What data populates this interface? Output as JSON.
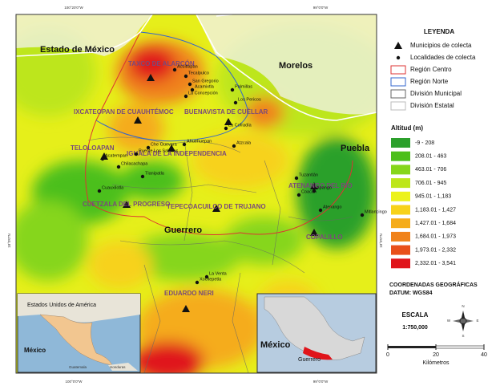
{
  "map": {
    "state_labels": [
      "Estado de México",
      "Morelos",
      "Puebla",
      "Guerrero"
    ],
    "municipalities": [
      {
        "label": "TAXCO DE ALARCÓN"
      },
      {
        "label": "IXCATEOPAN DE CUAUHTÉMOC"
      },
      {
        "label": "BUENAVISTA DE CUÉLLAR"
      },
      {
        "label": "TELOLOAPAN"
      },
      {
        "label": "IGUALA DE LA INDEPENDENCIA"
      },
      {
        "label": "CUETZALA DEL PROGRESO"
      },
      {
        "label": "TEPECOACUILCO DE TRUJANO"
      },
      {
        "label": "ATENANGO DEL RÍO"
      },
      {
        "label": "COPALILLO"
      },
      {
        "label": "EDUARDO NERI"
      }
    ],
    "localities": [
      "Acuitlapan",
      "Tecalpulco",
      "San Gregorio",
      "Acamixtla",
      "La Concepción",
      "Palmillas",
      "Los Pericos",
      "Puente Los Sabinos",
      "Acatempan",
      "Che Guevara",
      "Ahuehuepan",
      "Chilacachapa",
      "Tlanipatla",
      "Cuauxilotla",
      "La Cofradía",
      "Atzcala",
      "Tuzantlán",
      "Coacán",
      "Apango",
      "Atenango",
      "Mitlancingo",
      "Xocitepetla",
      "La Venta"
    ],
    "coordinates": [
      "100°20'0\"W",
      "99°0'0\"W",
      "100°0'0\"W",
      "99°0'0\"W",
      "18°0'0\"N",
      "18°0'0\"N"
    ]
  },
  "insets": [
    {
      "labels": [
        "Estados Unidos de América",
        "México",
        "Guatemala",
        "Honduras"
      ]
    },
    {
      "labels": [
        "México",
        "Guerrero"
      ]
    }
  ],
  "legend": {
    "title": "LEYENDA",
    "symbols": [
      "Municipios de colecta",
      "Localidades de colecta",
      "Región Centro",
      "Región Norte",
      "División Municipal",
      "División Estatal"
    ],
    "altitude_title": "Altitud (m)",
    "altitude_classes": [
      {
        "label": "-9 - 208",
        "color": "#2ca02c"
      },
      {
        "label": "208.01 - 463",
        "color": "#4cbf1a"
      },
      {
        "label": "463.01 - 706",
        "color": "#86d61a"
      },
      {
        "label": "706.01 - 945",
        "color": "#bde61a"
      },
      {
        "label": "945.01 - 1,183",
        "color": "#ecf21a"
      },
      {
        "label": "1,183.01 - 1,427",
        "color": "#f7d21a"
      },
      {
        "label": "1,427.01 - 1,684",
        "color": "#f5ac1a"
      },
      {
        "label": "1,684.01 - 1,973",
        "color": "#f0821a"
      },
      {
        "label": "1,973.01 - 2,332",
        "color": "#e9501a"
      },
      {
        "label": "2,332.01 - 3,541",
        "color": "#e0141a"
      }
    ],
    "coordinates_title": "COORDENADAS GEOGRÁFICAS",
    "datum": "DATUM: WGS84",
    "scale_title": "ESCALA",
    "scale": "1:750,000",
    "scale_ticks": [
      0,
      20,
      40
    ],
    "scale_unit": "Kilómetros",
    "compass": [
      "N",
      "S",
      "E",
      "W"
    ]
  }
}
